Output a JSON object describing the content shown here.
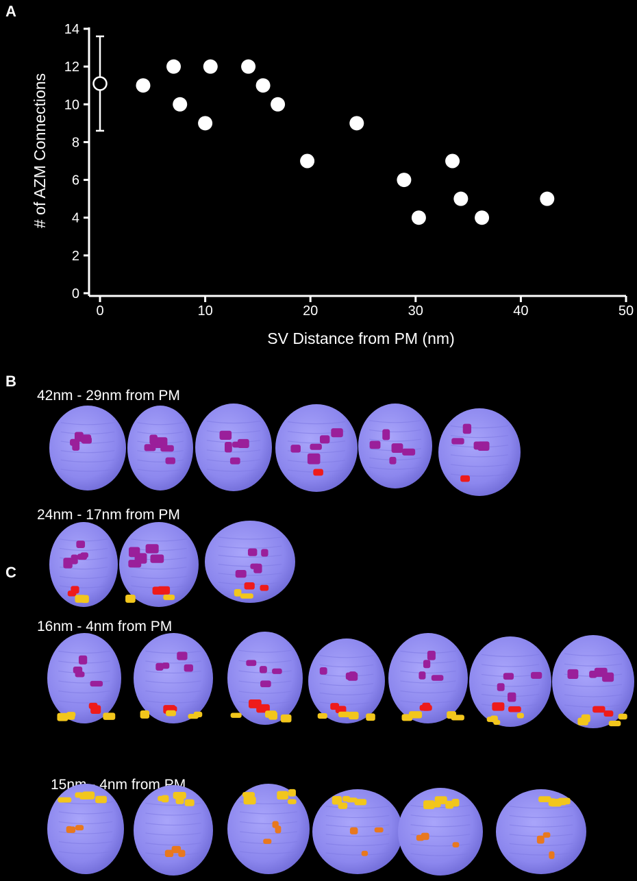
{
  "panels": {
    "a": {
      "letter": "A"
    },
    "b": {
      "letter": "B",
      "rows": [
        {
          "label": "42nm - 29nm from PM",
          "count": 6
        },
        {
          "label": "24nm - 17nm from PM",
          "count": 3
        },
        {
          "label": "16nm - 4nm from PM",
          "count": 7
        }
      ]
    },
    "c": {
      "letter": "C",
      "rows": [
        {
          "label": "15nm - 4nm from PM",
          "count": 6
        }
      ]
    }
  },
  "chart_data": {
    "type": "scatter",
    "xlabel": "SV Distance from PM (nm)",
    "ylabel": "# of AZM Connections",
    "xlim": [
      0,
      50
    ],
    "ylim": [
      0,
      14
    ],
    "xticks": [
      0,
      10,
      20,
      30,
      40,
      50
    ],
    "yticks": [
      0,
      2,
      4,
      6,
      8,
      10,
      12,
      14
    ],
    "mean_point": {
      "x": 0,
      "y": 11.1,
      "err_low": 8.6,
      "err_high": 13.6
    },
    "points": [
      {
        "x": 4.1,
        "y": 11
      },
      {
        "x": 7.0,
        "y": 12
      },
      {
        "x": 7.6,
        "y": 10
      },
      {
        "x": 10.0,
        "y": 9
      },
      {
        "x": 10.5,
        "y": 12
      },
      {
        "x": 14.1,
        "y": 12
      },
      {
        "x": 15.5,
        "y": 11
      },
      {
        "x": 16.9,
        "y": 10
      },
      {
        "x": 24.4,
        "y": 9
      },
      {
        "x": 19.7,
        "y": 7
      },
      {
        "x": 28.9,
        "y": 6
      },
      {
        "x": 30.3,
        "y": 4
      },
      {
        "x": 33.5,
        "y": 7
      },
      {
        "x": 34.3,
        "y": 5
      },
      {
        "x": 36.3,
        "y": 4
      },
      {
        "x": 42.5,
        "y": 5
      }
    ],
    "marker_color": "#ffffff",
    "mean_marker": "open-circle"
  },
  "colors": {
    "background": "#000000",
    "vesicle": "#8c87ee",
    "vesicle_shade": "#6f6ad6",
    "connector_purple": "#9a1f9a",
    "connector_red": "#ee1b1b",
    "connector_yellow": "#f2c61c",
    "connector_orange": "#e8781e"
  }
}
